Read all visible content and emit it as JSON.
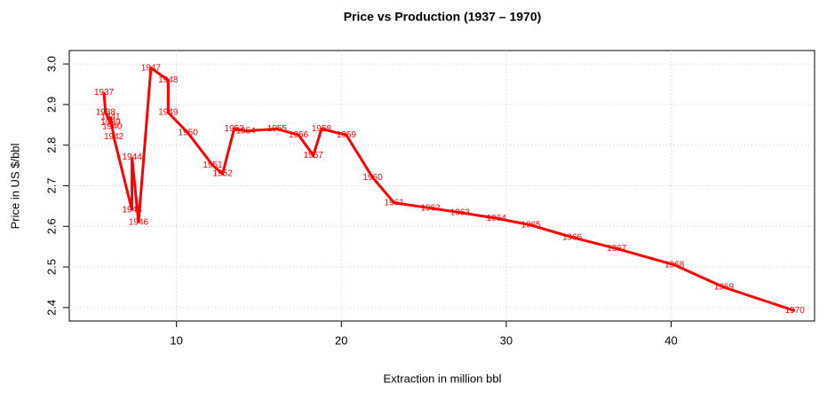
{
  "chart_data": {
    "type": "line",
    "title": "Price vs Production (1937 – 1970)",
    "x_label": "Extraction in million bbl",
    "y_label": "Price in US $/bbl",
    "x": [
      5.6,
      5.7,
      6.0,
      6.1,
      6.0,
      6.2,
      7.3,
      7.3,
      7.7,
      8.45,
      9.5,
      9.5,
      10.7,
      12.2,
      12.8,
      13.5,
      14.2,
      16.1,
      17.4,
      18.3,
      18.8,
      20.3,
      21.9,
      23.2,
      25.4,
      27.2,
      29.4,
      31.5,
      34.0,
      36.7,
      40.2,
      43.2,
      47.5
    ],
    "values": [
      2.93,
      2.88,
      2.855,
      2.845,
      2.87,
      2.82,
      2.64,
      2.77,
      2.61,
      2.99,
      2.96,
      2.88,
      2.83,
      2.75,
      2.73,
      2.84,
      2.835,
      2.84,
      2.825,
      2.775,
      2.84,
      2.825,
      2.72,
      2.658,
      2.645,
      2.634,
      2.62,
      2.603,
      2.573,
      2.545,
      2.505,
      2.45,
      2.392
    ],
    "labels": [
      "1937",
      "1938",
      "1939",
      "1940",
      "1941",
      "1942",
      "1943",
      "1944",
      "1946",
      "1947",
      "1948",
      "1949",
      "1950",
      "1951",
      "1952",
      "1953",
      "1954",
      "1955",
      "1956",
      "1957",
      "1958",
      "1959",
      "1960",
      "1961",
      "1962",
      "1963",
      "1964",
      "1965",
      "1966",
      "1967",
      "1968",
      "1969",
      "1970"
    ],
    "color": "#ff0000",
    "label_color": "#ff0000",
    "xlim": [
      3.5,
      48.7
    ],
    "ylim": [
      2.367,
      3.033
    ],
    "xticks": [
      10,
      20,
      30,
      40
    ],
    "yticks": [
      2.4,
      2.5,
      2.6,
      2.7,
      2.8,
      2.9,
      {
        "value": 3,
        "label": "3.0"
      }
    ],
    "grid": true
  }
}
